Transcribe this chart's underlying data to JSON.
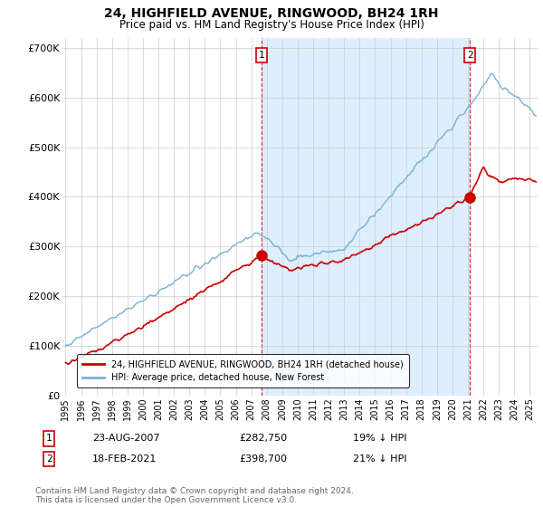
{
  "title": "24, HIGHFIELD AVENUE, RINGWOOD, BH24 1RH",
  "subtitle": "Price paid vs. HM Land Registry's House Price Index (HPI)",
  "ylabel_ticks": [
    "£0",
    "£100K",
    "£200K",
    "£300K",
    "£400K",
    "£500K",
    "£600K",
    "£700K"
  ],
  "ylim": [
    0,
    720000
  ],
  "xlim_start": 1994.8,
  "xlim_end": 2025.5,
  "sale1_x": 2007.645,
  "sale1_y": 282750,
  "sale2_x": 2021.12,
  "sale2_y": 398700,
  "sale1_date": "23-AUG-2007",
  "sale1_price": "£282,750",
  "sale1_hpi": "19% ↓ HPI",
  "sale2_date": "18-FEB-2021",
  "sale2_price": "£398,700",
  "sale2_hpi": "21% ↓ HPI",
  "line_red_color": "#cc0000",
  "line_blue_color": "#7ab0d4",
  "shade_color": "#ddeeff",
  "grid_color": "#cccccc",
  "background_color": "#ffffff",
  "legend1_label": "24, HIGHFIELD AVENUE, RINGWOOD, BH24 1RH (detached house)",
  "legend2_label": "HPI: Average price, detached house, New Forest",
  "footer": "Contains HM Land Registry data © Crown copyright and database right 2024.\nThis data is licensed under the Open Government Licence v3.0."
}
